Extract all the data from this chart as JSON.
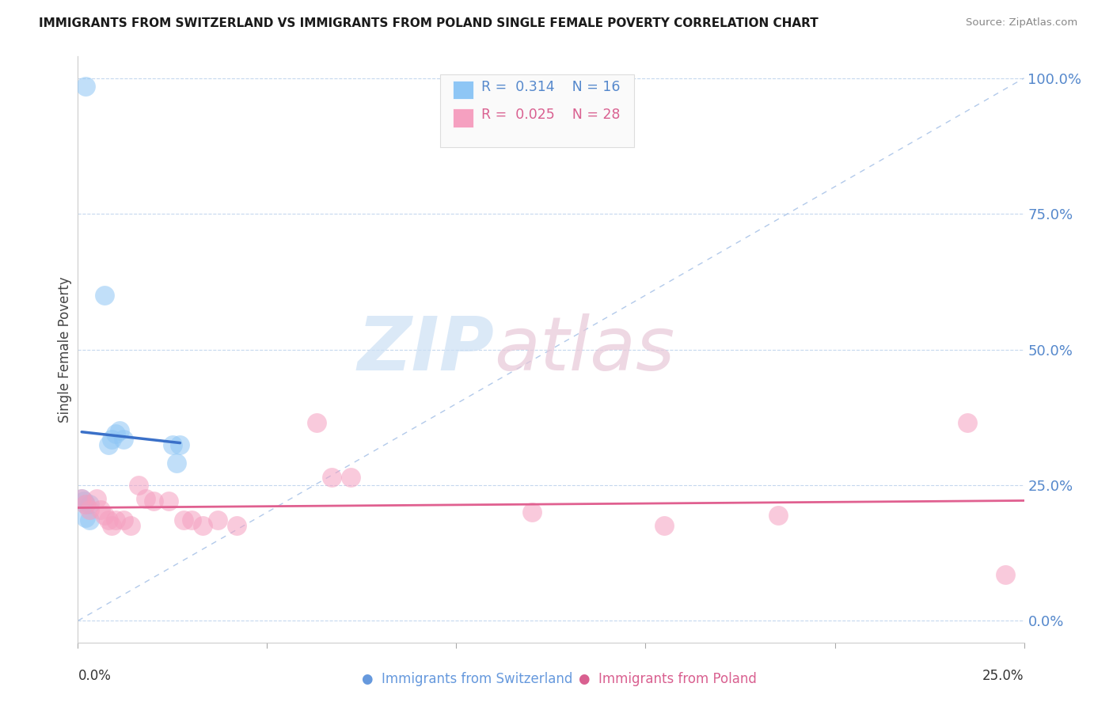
{
  "title": "IMMIGRANTS FROM SWITZERLAND VS IMMIGRANTS FROM POLAND SINGLE FEMALE POVERTY CORRELATION CHART",
  "source": "Source: ZipAtlas.com",
  "ylabel": "Single Female Poverty",
  "ytick_labels": [
    "0.0%",
    "25.0%",
    "50.0%",
    "75.0%",
    "100.0%"
  ],
  "ytick_values": [
    0.0,
    0.25,
    0.5,
    0.75,
    1.0
  ],
  "xlim": [
    0.0,
    0.25
  ],
  "ylim": [
    0.0,
    1.0
  ],
  "legend_r1": "R = 0.314",
  "legend_n1": "N = 16",
  "legend_r2": "R = 0.025",
  "legend_n2": "N = 28",
  "legend_label1": "Immigrants from Switzerland",
  "legend_label2": "Immigrants from Poland",
  "color_blue": "#8ec6f5",
  "color_pink": "#f5a0c0",
  "color_line_blue": "#3a70c8",
  "color_line_pink": "#e06090",
  "color_diag": "#aac4e8",
  "watermark_zip": "ZIP",
  "watermark_atlas": "atlas",
  "swiss_points": [
    [
      0.002,
      0.985
    ],
    [
      0.007,
      0.6
    ],
    [
      0.008,
      0.325
    ],
    [
      0.009,
      0.335
    ],
    [
      0.01,
      0.345
    ],
    [
      0.011,
      0.35
    ],
    [
      0.012,
      0.335
    ],
    [
      0.001,
      0.225
    ],
    [
      0.0015,
      0.22
    ],
    [
      0.002,
      0.215
    ],
    [
      0.003,
      0.215
    ],
    [
      0.002,
      0.19
    ],
    [
      0.003,
      0.185
    ],
    [
      0.025,
      0.325
    ],
    [
      0.027,
      0.325
    ],
    [
      0.026,
      0.29
    ]
  ],
  "poland_points": [
    [
      0.001,
      0.225
    ],
    [
      0.002,
      0.215
    ],
    [
      0.003,
      0.205
    ],
    [
      0.005,
      0.225
    ],
    [
      0.006,
      0.205
    ],
    [
      0.007,
      0.195
    ],
    [
      0.008,
      0.185
    ],
    [
      0.009,
      0.175
    ],
    [
      0.01,
      0.185
    ],
    [
      0.012,
      0.185
    ],
    [
      0.014,
      0.175
    ],
    [
      0.016,
      0.25
    ],
    [
      0.018,
      0.225
    ],
    [
      0.02,
      0.22
    ],
    [
      0.024,
      0.22
    ],
    [
      0.028,
      0.185
    ],
    [
      0.03,
      0.185
    ],
    [
      0.033,
      0.175
    ],
    [
      0.037,
      0.185
    ],
    [
      0.042,
      0.175
    ],
    [
      0.063,
      0.365
    ],
    [
      0.067,
      0.265
    ],
    [
      0.072,
      0.265
    ],
    [
      0.12,
      0.2
    ],
    [
      0.155,
      0.175
    ],
    [
      0.185,
      0.195
    ],
    [
      0.235,
      0.365
    ],
    [
      0.245,
      0.085
    ]
  ]
}
